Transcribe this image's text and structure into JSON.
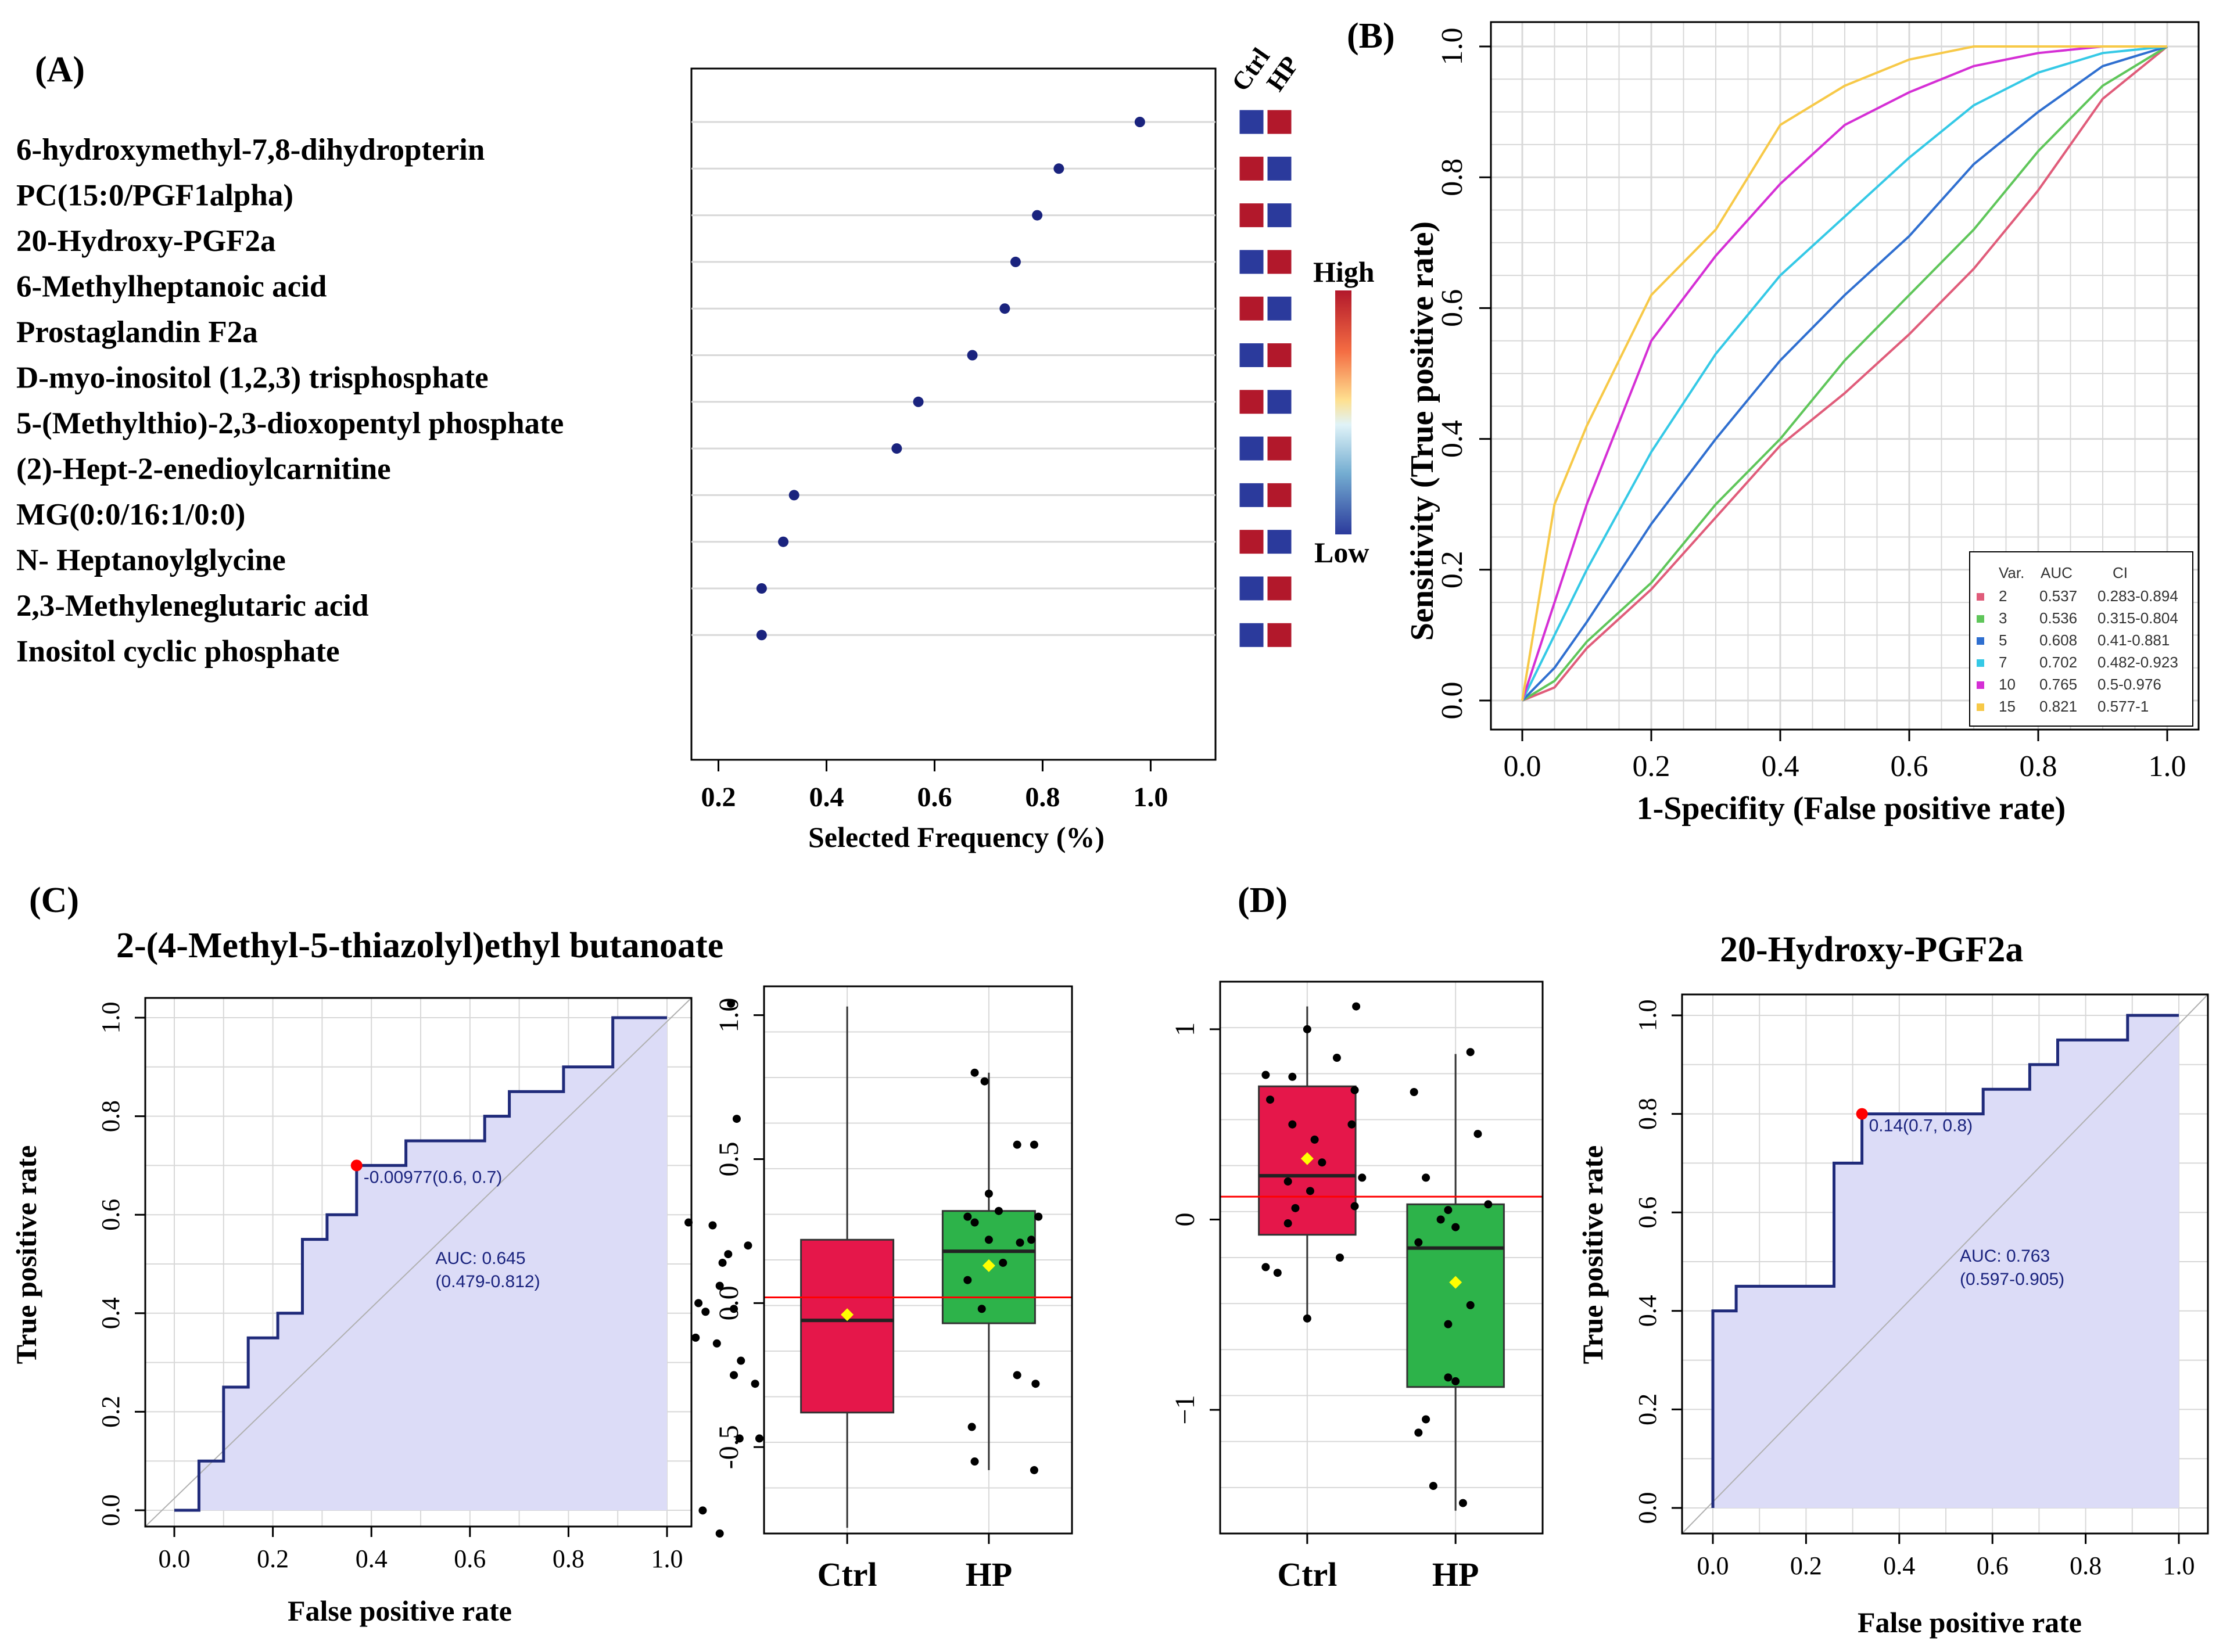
{
  "colors": {
    "panel_border": "#000000",
    "grid": "#d8d8d8",
    "point_dark": "#1a237e",
    "heat_high": "#b2182b",
    "heat_low": "#2b3a9c",
    "roc_line": "#1f2a7a",
    "roc_fill": "#dcdcf7",
    "ctrl_box": "#e5174a",
    "hp_box": "#2db34a",
    "cutoff_line": "#ff0000",
    "mean_marker": "#ffff00",
    "roc_colors": [
      "#e05c7a",
      "#5fc65a",
      "#2f6fd0",
      "#35c9e6",
      "#d52fd5",
      "#f7c948"
    ]
  },
  "chart_data": [
    {
      "id": "A",
      "panel_label": "(A)",
      "type": "scatter",
      "xlabel": "Selected Frequency (%)",
      "xlim": [
        0.15,
        1.12
      ],
      "xticks": [
        0.2,
        0.4,
        0.6,
        0.8,
        1.0
      ],
      "xtick_labels": [
        "0.2",
        "0.4",
        "0.6",
        "0.8",
        "1.0"
      ],
      "features": [
        "6-hydroxymethyl-7,8-dihydropterin",
        "PC(15:0/PGF1alpha)",
        "20-Hydroxy-PGF2a",
        "6-Methylheptanoic  acid",
        "Prostaglandin  F2a",
        "D-myo-inositol  (1,2,3)  trisphosphate",
        "5-(Methylthio)-2,3-dioxopentyl  phosphate",
        "(2)-Hept-2-enedioylcarnitine",
        "MG(0:0/16:1/0:0)",
        "N- Heptanoylglycine",
        "2,3-Methyleneglutaric  acid",
        "Inositol cyclic phosphate"
      ],
      "values": [
        0.98,
        0.83,
        0.79,
        0.75,
        0.73,
        0.67,
        0.57,
        0.53,
        0.34,
        0.32,
        0.28,
        0.28
      ],
      "heatmap_columns": [
        "Ctrl",
        "HP"
      ],
      "heatmap": [
        [
          "low",
          "high"
        ],
        [
          "high",
          "low"
        ],
        [
          "high",
          "low"
        ],
        [
          "low",
          "high"
        ],
        [
          "high",
          "low"
        ],
        [
          "low",
          "high"
        ],
        [
          "high",
          "low"
        ],
        [
          "low",
          "high"
        ],
        [
          "low",
          "high"
        ],
        [
          "high",
          "low"
        ],
        [
          "low",
          "high"
        ],
        [
          "low",
          "high"
        ]
      ],
      "colorbar_labels": {
        "high": "High",
        "low": "Low"
      }
    },
    {
      "id": "B",
      "panel_label": "(B)",
      "type": "line",
      "xlabel": "1-Specifity  (False positive rate)",
      "ylabel": "Sensitivity (True  positive  rate)",
      "xlim": [
        0,
        1
      ],
      "ylim": [
        0,
        1
      ],
      "ticks": [
        "0.0",
        "0.2",
        "0.4",
        "0.6",
        "0.8",
        "1.0"
      ],
      "legend_header": [
        "Var.",
        "AUC",
        "CI"
      ],
      "legend_position": "bottom-right",
      "series": [
        {
          "name": "2",
          "auc": "0.537",
          "ci": "0.283-0.894",
          "x": [
            0,
            0.05,
            0.1,
            0.2,
            0.3,
            0.4,
            0.5,
            0.6,
            0.7,
            0.8,
            0.9,
            1.0
          ],
          "y": [
            0,
            0.02,
            0.08,
            0.17,
            0.28,
            0.39,
            0.47,
            0.56,
            0.66,
            0.78,
            0.92,
            1.0
          ]
        },
        {
          "name": "3",
          "auc": "0.536",
          "ci": "0.315-0.804",
          "x": [
            0,
            0.05,
            0.1,
            0.2,
            0.3,
            0.4,
            0.5,
            0.6,
            0.7,
            0.8,
            0.9,
            1.0
          ],
          "y": [
            0,
            0.03,
            0.09,
            0.18,
            0.3,
            0.4,
            0.52,
            0.62,
            0.72,
            0.84,
            0.94,
            1.0
          ]
        },
        {
          "name": "5",
          "auc": "0.608",
          "ci": "0.41-0.881",
          "x": [
            0,
            0.05,
            0.1,
            0.2,
            0.3,
            0.4,
            0.5,
            0.6,
            0.7,
            0.8,
            0.9,
            1.0
          ],
          "y": [
            0,
            0.05,
            0.12,
            0.27,
            0.4,
            0.52,
            0.62,
            0.71,
            0.82,
            0.9,
            0.97,
            1.0
          ]
        },
        {
          "name": "7",
          "auc": "0.702",
          "ci": "0.482-0.923",
          "x": [
            0,
            0.05,
            0.1,
            0.2,
            0.3,
            0.4,
            0.5,
            0.6,
            0.7,
            0.8,
            0.9,
            1.0
          ],
          "y": [
            0,
            0.1,
            0.2,
            0.38,
            0.53,
            0.65,
            0.74,
            0.83,
            0.91,
            0.96,
            0.99,
            1.0
          ]
        },
        {
          "name": "10",
          "auc": "0.765",
          "ci": "0.5-0.976",
          "x": [
            0,
            0.05,
            0.1,
            0.2,
            0.3,
            0.4,
            0.5,
            0.6,
            0.7,
            0.8,
            0.9,
            1.0
          ],
          "y": [
            0,
            0.15,
            0.3,
            0.55,
            0.68,
            0.79,
            0.88,
            0.93,
            0.97,
            0.99,
            1.0,
            1.0
          ]
        },
        {
          "name": "15",
          "auc": "0.821",
          "ci": "0.577-1",
          "x": [
            0,
            0.05,
            0.1,
            0.2,
            0.3,
            0.4,
            0.5,
            0.6,
            0.7,
            0.8,
            0.9,
            1.0
          ],
          "y": [
            0,
            0.3,
            0.42,
            0.62,
            0.72,
            0.88,
            0.94,
            0.98,
            1.0,
            1.0,
            1.0,
            1.0
          ]
        }
      ]
    },
    {
      "id": "C",
      "panel_label": "(C)",
      "type": "line",
      "title": "2-(4-Methyl-5-thiazolyl)ethyl butanoate",
      "xlabel": "False positive rate",
      "ylabel": "True positive rate",
      "ticks": [
        "0.0",
        "0.2",
        "0.4",
        "0.6",
        "0.8",
        "1.0"
      ],
      "roc_x": [
        0,
        0.05,
        0.05,
        0.1,
        0.1,
        0.15,
        0.15,
        0.21,
        0.21,
        0.26,
        0.26,
        0.31,
        0.31,
        0.37,
        0.37,
        0.47,
        0.47,
        0.63,
        0.63,
        0.68,
        0.68,
        0.79,
        0.79,
        0.89,
        0.89,
        1.0
      ],
      "roc_y": [
        0,
        0,
        0.1,
        0.1,
        0.25,
        0.25,
        0.35,
        0.35,
        0.4,
        0.4,
        0.55,
        0.55,
        0.6,
        0.6,
        0.7,
        0.7,
        0.75,
        0.75,
        0.8,
        0.8,
        0.85,
        0.85,
        0.9,
        0.9,
        1.0,
        1.0
      ],
      "cutoff_point": [
        0.37,
        0.7
      ],
      "cutoff_label": "-0.00977(0.6, 0.7)",
      "auc_label": "AUC: 0.645",
      "auc_ci": "(0.479-0.812)"
    },
    {
      "id": "C_box",
      "type": "box",
      "categories": [
        "Ctrl",
        "HP"
      ],
      "ylim": [
        -0.8,
        1.1
      ],
      "ticks": [
        -0.5,
        0.0,
        0.5,
        1.0
      ],
      "tick_labels": [
        "-0.5",
        "0.0",
        "0.5",
        "1.0"
      ],
      "cutoff": 0.02,
      "boxes": [
        {
          "q1": -0.38,
          "median": -0.06,
          "q3": 0.22,
          "whisker_low": -0.78,
          "whisker_high": 1.03,
          "mean": -0.04
        },
        {
          "q1": -0.07,
          "median": 0.18,
          "q3": 0.32,
          "whisker_low": -0.58,
          "whisker_high": 0.8,
          "mean": 0.13
        }
      ],
      "points": [
        [
          -0.12,
          0.28
        ],
        [
          0.05,
          0.27
        ],
        [
          0.16,
          0.17
        ],
        [
          0.18,
          1.04
        ],
        [
          0.22,
          0.64
        ],
        [
          0.3,
          0.2
        ],
        [
          0.12,
          0.14
        ],
        [
          0.1,
          0.06
        ],
        [
          -0.05,
          0.0
        ],
        [
          0.0,
          -0.03
        ],
        [
          0.2,
          -0.02
        ],
        [
          -0.07,
          -0.12
        ],
        [
          0.08,
          -0.14
        ],
        [
          0.25,
          -0.2
        ],
        [
          0.2,
          -0.25
        ],
        [
          0.35,
          -0.28
        ],
        [
          -0.02,
          -0.72
        ],
        [
          0.1,
          -0.8
        ],
        [
          0.24,
          -0.47
        ],
        [
          0.38,
          -0.47
        ],
        [
          1.9,
          0.8
        ],
        [
          1.97,
          0.77
        ],
        [
          2.2,
          0.55
        ],
        [
          1.9,
          0.28
        ],
        [
          2.0,
          0.22
        ],
        [
          2.1,
          0.14
        ],
        [
          2.22,
          0.21
        ],
        [
          2.3,
          0.22
        ],
        [
          2.35,
          0.3
        ],
        [
          1.85,
          0.08
        ],
        [
          1.95,
          -0.02
        ],
        [
          2.32,
          0.55
        ],
        [
          2.2,
          -0.25
        ],
        [
          2.33,
          -0.28
        ],
        [
          1.88,
          -0.43
        ],
        [
          1.9,
          -0.55
        ],
        [
          2.32,
          -0.58
        ],
        [
          2.0,
          0.38
        ],
        [
          2.07,
          0.32
        ],
        [
          1.85,
          0.3
        ]
      ]
    },
    {
      "id": "D_box",
      "panel_label": "(D)",
      "type": "box",
      "categories": [
        "Ctrl",
        "HP"
      ],
      "ylim": [
        -1.65,
        1.25
      ],
      "ticks": [
        -1,
        0,
        1
      ],
      "tick_labels": [
        "−1",
        "0",
        "1"
      ],
      "cutoff": 0.12,
      "boxes": [
        {
          "q1": -0.08,
          "median": 0.23,
          "q3": 0.7,
          "whisker_low": -0.52,
          "whisker_high": 1.12,
          "mean": 0.32
        },
        {
          "q1": -0.88,
          "median": -0.15,
          "q3": 0.08,
          "whisker_low": -1.53,
          "whisker_high": 0.87,
          "mean": -0.33
        }
      ],
      "points": [
        [
          0.72,
          0.76
        ],
        [
          0.9,
          0.75
        ],
        [
          1.0,
          1.0
        ],
        [
          1.2,
          0.85
        ],
        [
          1.33,
          1.12
        ],
        [
          0.75,
          0.63
        ],
        [
          0.9,
          0.5
        ],
        [
          1.32,
          0.68
        ],
        [
          1.3,
          0.5
        ],
        [
          1.05,
          0.42
        ],
        [
          1.1,
          0.3
        ],
        [
          0.87,
          0.2
        ],
        [
          1.02,
          0.15
        ],
        [
          0.92,
          0.06
        ],
        [
          0.87,
          -0.02
        ],
        [
          1.37,
          0.22
        ],
        [
          1.32,
          0.07
        ],
        [
          0.72,
          -0.25
        ],
        [
          0.8,
          -0.28
        ],
        [
          1.22,
          -0.2
        ],
        [
          1.0,
          -0.52
        ],
        [
          1.72,
          0.67
        ],
        [
          2.1,
          0.88
        ],
        [
          2.15,
          0.45
        ],
        [
          1.8,
          0.22
        ],
        [
          1.95,
          0.05
        ],
        [
          2.22,
          0.08
        ],
        [
          1.9,
          0.0
        ],
        [
          2.0,
          -0.04
        ],
        [
          1.75,
          -0.12
        ],
        [
          2.1,
          -0.45
        ],
        [
          1.95,
          -0.55
        ],
        [
          1.95,
          -0.83
        ],
        [
          2.0,
          -0.85
        ],
        [
          1.8,
          -1.05
        ],
        [
          1.75,
          -1.12
        ],
        [
          1.85,
          -1.4
        ],
        [
          2.05,
          -1.49
        ]
      ]
    },
    {
      "id": "D",
      "type": "line",
      "title": "20-Hydroxy-PGF2a",
      "xlabel": "False positive rate",
      "ylabel": "True positive rate",
      "ticks": [
        "0.0",
        "0.2",
        "0.4",
        "0.6",
        "0.8",
        "1.0"
      ],
      "roc_x": [
        0,
        0,
        0.05,
        0.05,
        0.26,
        0.26,
        0.32,
        0.32,
        0.58,
        0.58,
        0.68,
        0.68,
        0.74,
        0.74,
        0.89,
        0.89,
        1.0
      ],
      "roc_y": [
        0,
        0.4,
        0.4,
        0.45,
        0.45,
        0.7,
        0.7,
        0.8,
        0.8,
        0.85,
        0.85,
        0.9,
        0.9,
        0.95,
        0.95,
        1.0,
        1.0
      ],
      "cutoff_point": [
        0.32,
        0.8
      ],
      "cutoff_label": "0.14(0.7, 0.8)",
      "auc_label": "AUC: 0.763",
      "auc_ci": "(0.597-0.905)"
    }
  ]
}
